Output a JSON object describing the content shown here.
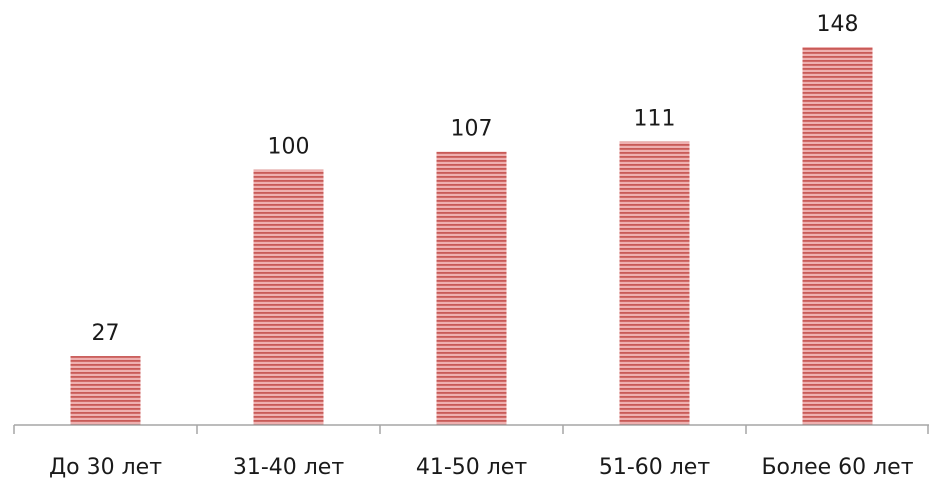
{
  "chart_data": {
    "type": "bar",
    "categories": [
      "До 30 лет",
      "31-40 лет",
      "41-50 лет",
      "51-60 лет",
      "Более 60 лет"
    ],
    "values": [
      27,
      100,
      107,
      111,
      148
    ],
    "title": "",
    "xlabel": "",
    "ylabel": "",
    "ylim": [
      0,
      148
    ],
    "grid": false,
    "legend": "none",
    "data_labels": true,
    "y_axis_visible": false,
    "colors": {
      "bar_fill": "#e8a3a3",
      "bar_stripe": "#c0504d",
      "axis": "#a6a6a6",
      "text": "#1a1a1a"
    }
  }
}
